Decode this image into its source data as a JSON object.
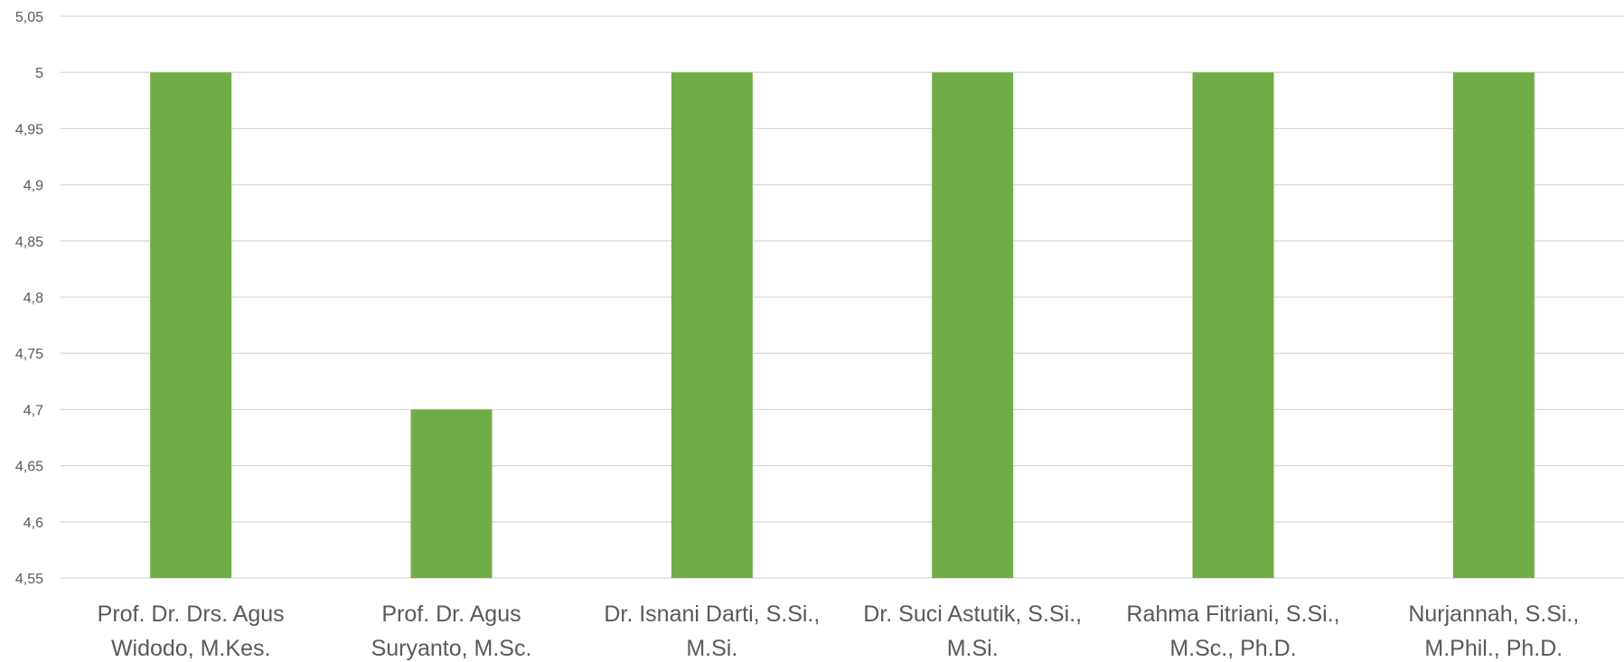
{
  "chart_data": {
    "type": "bar",
    "title": "",
    "xlabel": "",
    "ylabel": "",
    "categories": [
      [
        "Prof. Dr. Drs. Agus",
        "Widodo, M.Kes."
      ],
      [
        "Prof. Dr. Agus",
        "Suryanto, M.Sc."
      ],
      [
        "Dr. Isnani Darti, S.Si.,",
        "M.Si."
      ],
      [
        "Dr. Suci Astutik, S.Si.,",
        "M.Si."
      ],
      [
        "Rahma Fitriani, S.Si.,",
        "M.Sc., Ph.D."
      ],
      [
        "Nurjannah, S.Si.,",
        "M.Phil., Ph.D."
      ]
    ],
    "values": [
      5,
      4.7,
      5,
      5,
      5,
      5
    ],
    "ylim": [
      4.55,
      5.05
    ],
    "yticks": [
      "4,55",
      "4,6",
      "4,65",
      "4,7",
      "4,75",
      "4,8",
      "4,85",
      "4,9",
      "4,95",
      "5",
      "5,05"
    ],
    "grid": true,
    "bar_color": "#70ad47",
    "grid_color": "#d9d9d9"
  }
}
